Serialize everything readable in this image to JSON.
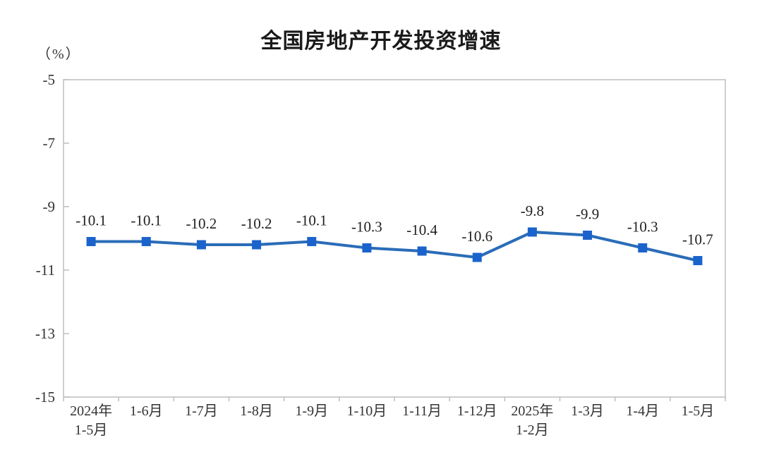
{
  "chart_data": {
    "type": "line",
    "title": "全国房地产开发投资增速",
    "unit_label": "（%）",
    "categories": [
      "2024年\n1-5月",
      "1-6月",
      "1-7月",
      "1-8月",
      "1-9月",
      "1-10月",
      "1-11月",
      "1-12月",
      "2025年\n1-2月",
      "1-3月",
      "1-4月",
      "1-5月"
    ],
    "values": [
      -10.1,
      -10.1,
      -10.2,
      -10.2,
      -10.1,
      -10.3,
      -10.4,
      -10.6,
      -9.8,
      -9.9,
      -10.3,
      -10.7
    ],
    "data_labels": [
      "-10.1",
      "-10.1",
      "-10.2",
      "-10.2",
      "-10.1",
      "-10.3",
      "-10.4",
      "-10.6",
      "-9.8",
      "-9.9",
      "-10.3",
      "-10.7"
    ],
    "yticks": [
      -5,
      -7,
      -9,
      -11,
      -13,
      -15
    ],
    "ytick_labels": [
      "-5",
      "-7",
      "-9",
      "-11",
      "-13",
      "-15"
    ],
    "ylim": [
      -15,
      -5
    ],
    "grid": false,
    "legend": "none",
    "colors": {
      "line": "#2a6cb8",
      "marker": "#1b63cc",
      "axis": "#bdbdbd",
      "tick_label": "#333333",
      "data_label": "#1f1f1f",
      "title": "#1a1a1a"
    }
  }
}
